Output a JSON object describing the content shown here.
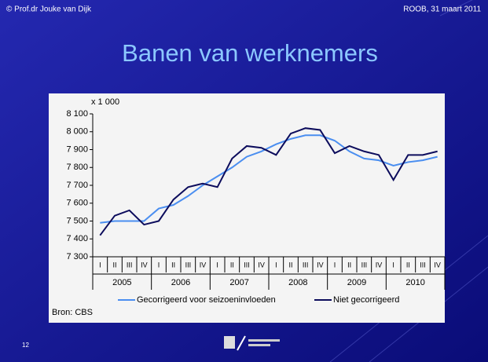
{
  "header": {
    "left": "© Prof.dr Jouke van Dijk",
    "right": "ROOB, 31 maart 2011",
    "title": "Banen van werknemers",
    "slide_number": "12"
  },
  "chart_data": {
    "type": "line",
    "unit_label": "x 1 000",
    "source": "Bron: CBS",
    "categories": [
      "I",
      "II",
      "III",
      "IV",
      "I",
      "II",
      "III",
      "IV",
      "I",
      "II",
      "III",
      "IV",
      "I",
      "II",
      "III",
      "IV",
      "I",
      "II",
      "III",
      "IV",
      "I",
      "II",
      "III",
      "IV"
    ],
    "groups": [
      "2005",
      "2006",
      "2007",
      "2008",
      "2009",
      "2010"
    ],
    "series": [
      {
        "name": "Gecorrigeerd voor seizoeninvloeden",
        "color": "#4a8ef0",
        "values": [
          7490,
          7500,
          7500,
          7500,
          7570,
          7590,
          7640,
          7700,
          7750,
          7800,
          7860,
          7890,
          7930,
          7960,
          7980,
          7980,
          7950,
          7890,
          7850,
          7840,
          7810,
          7830,
          7840,
          7860
        ]
      },
      {
        "name": "Niet gecorrigeerd",
        "color": "#0c0c5c",
        "values": [
          7420,
          7530,
          7560,
          7480,
          7500,
          7620,
          7690,
          7710,
          7690,
          7850,
          7920,
          7910,
          7870,
          7990,
          8020,
          8010,
          7880,
          7920,
          7890,
          7870,
          7730,
          7870,
          7870,
          7890
        ]
      }
    ],
    "ylim": [
      7300,
      8100
    ],
    "yticks": [
      {
        "value": 7300,
        "label": "7 300"
      },
      {
        "value": 7400,
        "label": "7 400"
      },
      {
        "value": 7500,
        "label": "7 500"
      },
      {
        "value": 7600,
        "label": "7 600"
      },
      {
        "value": 7700,
        "label": "7 700"
      },
      {
        "value": 7800,
        "label": "7 800"
      },
      {
        "value": 7900,
        "label": "7 900"
      },
      {
        "value": 8000,
        "label": "8 000"
      },
      {
        "value": 8100,
        "label": "8 100"
      }
    ]
  }
}
